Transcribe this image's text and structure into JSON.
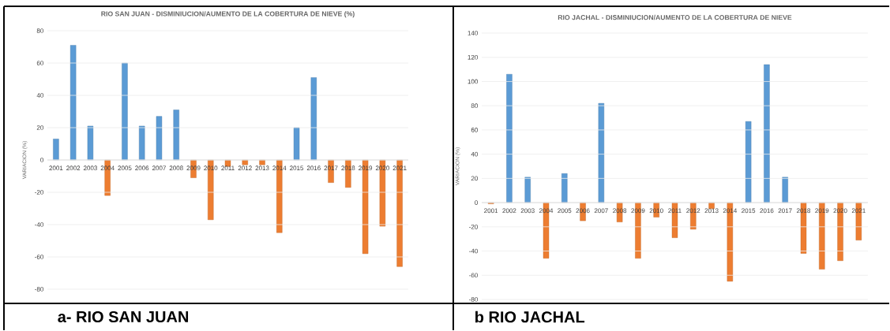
{
  "chart_data": [
    {
      "type": "bar",
      "title": "RIO SAN JUAN - DISMINIUCION/AUMENTO DE LA COBERTURA DE NIEVE (%)",
      "ylabel": "VARIACION (%)",
      "categories": [
        "2001",
        "2002",
        "2003",
        "2004",
        "2005",
        "2006",
        "2007",
        "2008",
        "2009",
        "2010",
        "2011",
        "2012",
        "2013",
        "2014",
        "2015",
        "2016",
        "2017",
        "2018",
        "2019",
        "2020",
        "2021"
      ],
      "values": [
        13,
        71,
        21,
        -22,
        60,
        21,
        27,
        31,
        -11,
        -37,
        -4,
        -3,
        -3,
        -45,
        20,
        51,
        -14,
        -17,
        -58,
        -41,
        -66
      ],
      "colors": [
        "#5b9bd5",
        "#5b9bd5",
        "#5b9bd5",
        "#ed7d31",
        "#5b9bd5",
        "#5b9bd5",
        "#5b9bd5",
        "#5b9bd5",
        "#ed7d31",
        "#ed7d31",
        "#ed7d31",
        "#ed7d31",
        "#ed7d31",
        "#ed7d31",
        "#5b9bd5",
        "#5b9bd5",
        "#ed7d31",
        "#ed7d31",
        "#ed7d31",
        "#ed7d31",
        "#ed7d31"
      ],
      "ylim": [
        -80,
        80
      ],
      "yticks": [
        -80,
        -60,
        -40,
        -20,
        0,
        20,
        40,
        60,
        80
      ],
      "grid": "y",
      "annotations": [
        "a-   RIO SAN JUAN"
      ]
    },
    {
      "type": "bar",
      "title": "RIO JACHAL - DISMINIUCION/AUMENTO DE LA COBERTURA DE NIEVE",
      "ylabel": "VARIACION (%)",
      "categories": [
        "2001",
        "2002",
        "2003",
        "2004",
        "2005",
        "2006",
        "2007",
        "2008",
        "2009",
        "2010",
        "2011",
        "2012",
        "2013",
        "2014",
        "2015",
        "2016",
        "2017",
        "2018",
        "2019",
        "2020",
        "2021"
      ],
      "values": [
        -1,
        106,
        21,
        -46,
        24,
        -15,
        82,
        -16,
        -46,
        -12,
        -29,
        -22,
        -5,
        -65,
        67,
        114,
        21,
        -42,
        -55,
        -48,
        -31
      ],
      "colors": [
        "#ed7d31",
        "#5b9bd5",
        "#5b9bd5",
        "#ed7d31",
        "#5b9bd5",
        "#ed7d31",
        "#5b9bd5",
        "#ed7d31",
        "#ed7d31",
        "#ed7d31",
        "#ed7d31",
        "#ed7d31",
        "#ed7d31",
        "#ed7d31",
        "#5b9bd5",
        "#5b9bd5",
        "#5b9bd5",
        "#ed7d31",
        "#ed7d31",
        "#ed7d31",
        "#ed7d31"
      ],
      "ylim": [
        -80,
        140
      ],
      "yticks": [
        -80,
        -60,
        -40,
        -20,
        0,
        20,
        40,
        60,
        80,
        100,
        120,
        140
      ],
      "grid": "y",
      "annotations": [
        "b RIO JACHAL"
      ]
    }
  ]
}
